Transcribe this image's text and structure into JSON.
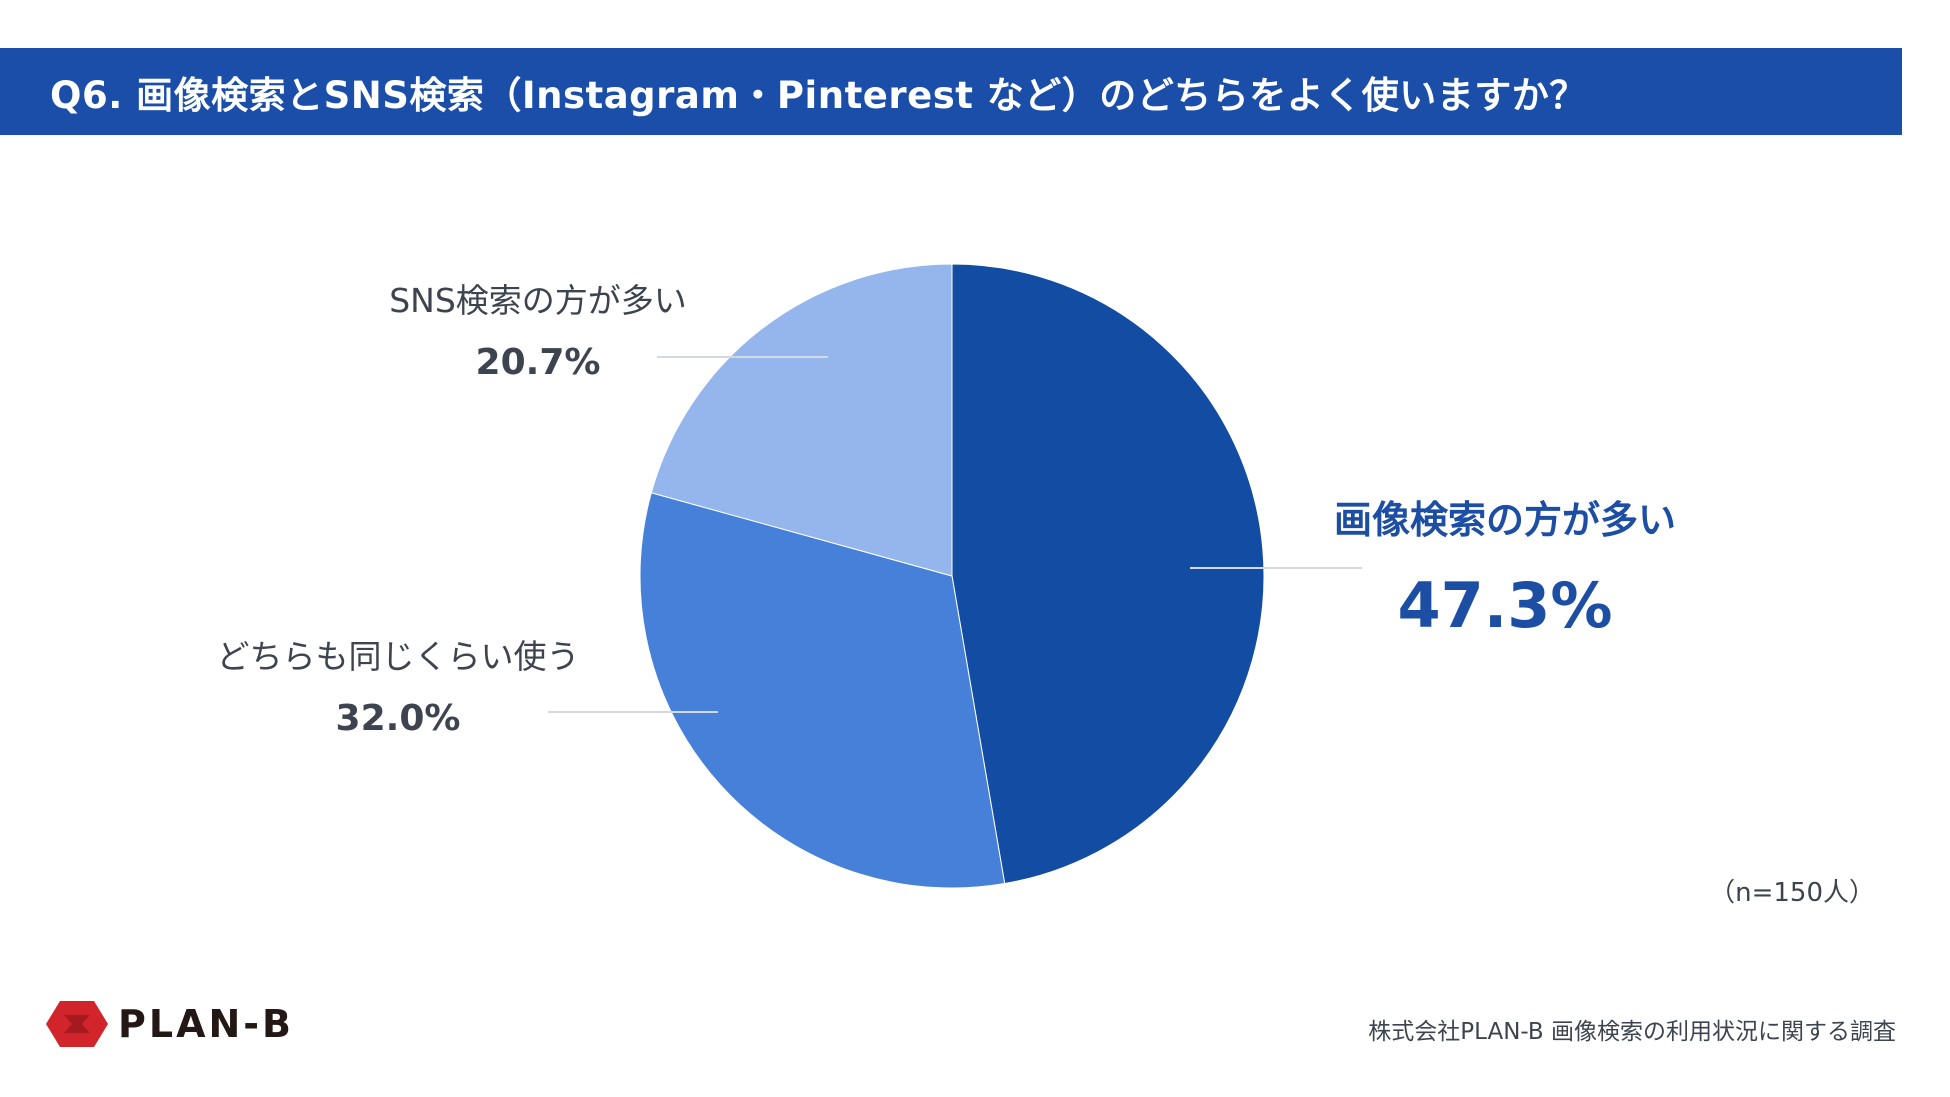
{
  "header": {
    "title": "Q6. 画像検索とSNS検索（Instagram・Pinterest など）のどちらをよく使いますか？"
  },
  "chart_data": {
    "type": "pie",
    "unit": "%",
    "slices": [
      {
        "label": "画像検索の方が多い",
        "value": 47.3,
        "display": "47.3%",
        "color": "#134ca3",
        "label_color": "#1c4ea4",
        "emphasis": true
      },
      {
        "label": "どちらも同じくらい使う",
        "value": 32.0,
        "display": "32.0%",
        "color": "#4680d8",
        "label_color": "#3d4450",
        "emphasis": false
      },
      {
        "label": "SNS検索の方が多い",
        "value": 20.7,
        "display": "20.7%",
        "color": "#94b6ec",
        "label_color": "#3d4450",
        "emphasis": false
      }
    ],
    "start": "12 o'clock",
    "direction": "clockwise"
  },
  "footer": {
    "sample_size": "（n=150人）",
    "brand": "PLAN-B",
    "source": "株式会社PLAN-B  画像検索の利用状況に関する調査"
  },
  "colors": {
    "title_bar": "#1a4ea8",
    "leader_line": "#d4d8e0",
    "logo_red": "#d2252b"
  }
}
